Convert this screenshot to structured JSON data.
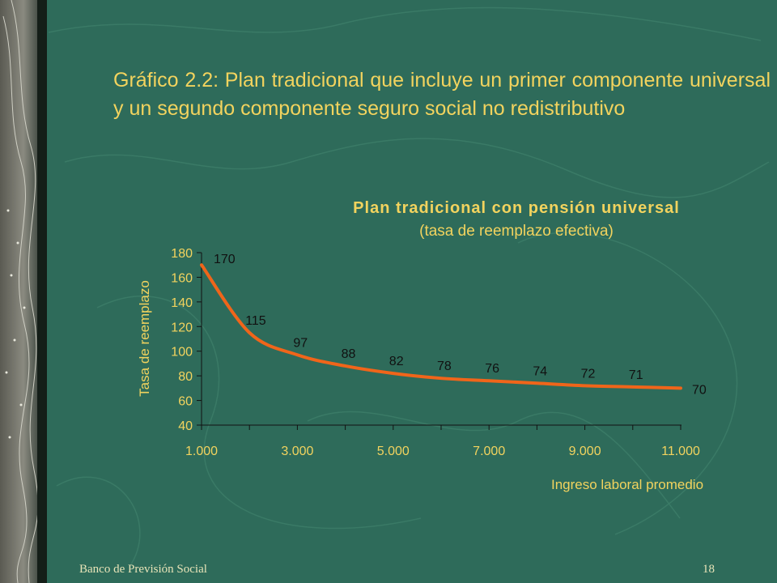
{
  "slide": {
    "title": "Gráfico 2.2: Plan tradicional que incluye un primer componente universal y un segundo componente seguro social no redistributivo",
    "footer_left": "Banco de Previsión Social",
    "footer_right": "18"
  },
  "colors": {
    "background": "#2e6b5a",
    "title_text": "#f2d35e",
    "chart_text": "#f2d35e",
    "series_line": "#f0651a",
    "axis": "#111111"
  },
  "chart_data": {
    "type": "line",
    "title": "Plan tradicional con pensión universal",
    "subtitle": "(tasa de reemplazo efectiva)",
    "xlabel": "Ingreso laboral promedio",
    "ylabel": "Tasa de reemplazo",
    "xlim": [
      1000,
      11000
    ],
    "ylim": [
      40,
      180
    ],
    "x_ticks": [
      1000,
      3000,
      5000,
      7000,
      9000,
      11000
    ],
    "x_tick_labels": [
      "1.000",
      "3.000",
      "5.000",
      "7.000",
      "9.000",
      "11.000"
    ],
    "y_ticks": [
      40,
      60,
      80,
      100,
      120,
      140,
      160,
      180
    ],
    "y_tick_labels": [
      "40",
      "60",
      "80",
      "100",
      "120",
      "140",
      "160",
      "180"
    ],
    "grid": false,
    "legend": "none",
    "series": [
      {
        "x": [
          1000,
          2000,
          3000,
          4000,
          5000,
          6000,
          7000,
          8000,
          9000,
          10000,
          11000
        ],
        "values": [
          170,
          115,
          97,
          88,
          82,
          78,
          76,
          74,
          72,
          71,
          70
        ],
        "data_labels": [
          "170",
          "115",
          "97",
          "88",
          "82",
          "78",
          "76",
          "74",
          "72",
          "71",
          "70"
        ]
      }
    ]
  }
}
